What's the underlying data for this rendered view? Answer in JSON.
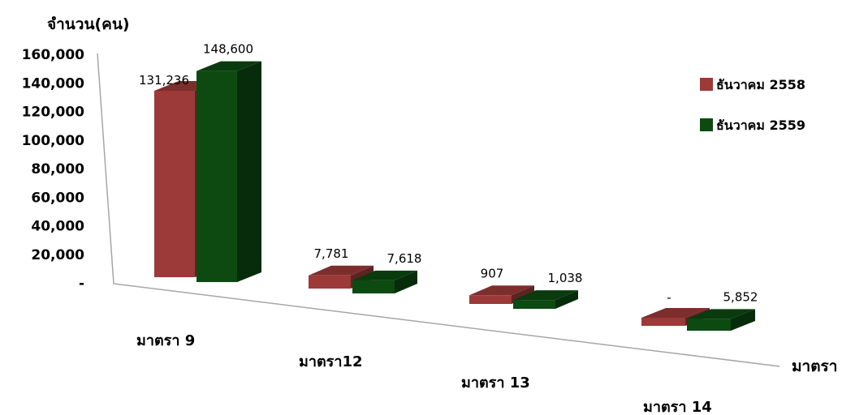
{
  "chart_data": {
    "type": "bar",
    "title": "",
    "ylabel": "จำนวน(คน)",
    "xlabel": "มาตรา",
    "ylim": [
      0,
      160000
    ],
    "yticks": [
      "-",
      "20,000",
      "40,000",
      "60,000",
      "80,000",
      "100,000",
      "120,000",
      "140,000",
      "160,000"
    ],
    "categories": [
      "มาตรา 9",
      "มาตรา12",
      "มาตรา 13",
      "มาตรา 14"
    ],
    "series": [
      {
        "name": "ธันวาคม 2558",
        "color": "#9b3a38",
        "values": [
          131236,
          7781,
          907,
          0
        ],
        "labels": [
          "131,236",
          "7,781",
          "907",
          "-"
        ]
      },
      {
        "name": "ธันวาคม 2559",
        "color": "#0c4a12",
        "values": [
          148600,
          7618,
          1038,
          5852
        ],
        "labels": [
          "148,600",
          "7,618",
          "1,038",
          "5,852"
        ]
      }
    ],
    "legend": "right",
    "grid": false,
    "style": "3d-perspective"
  }
}
